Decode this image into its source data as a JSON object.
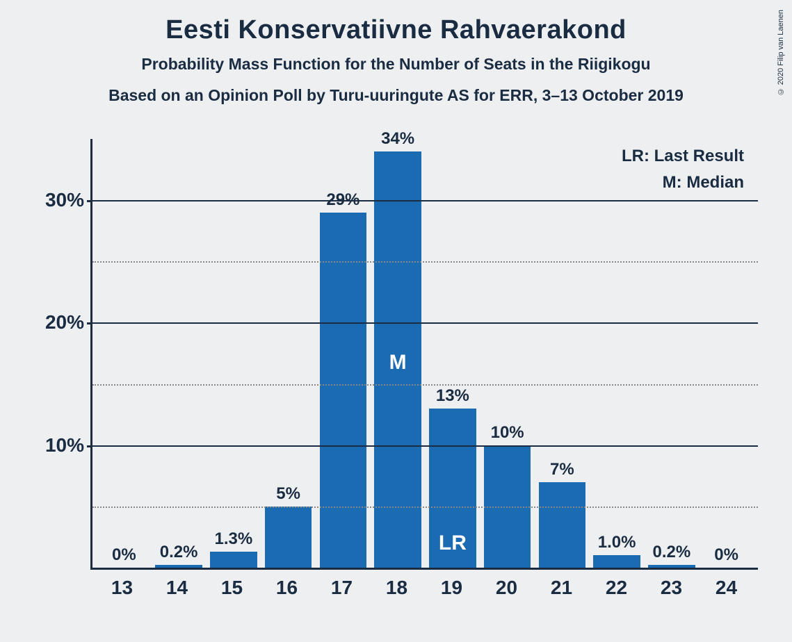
{
  "title": "Eesti Konservatiivne Rahvaerakond",
  "subtitle1": "Probability Mass Function for the Number of Seats in the Riigikogu",
  "subtitle2": "Based on an Opinion Poll by Turu-uuringute AS for ERR, 3–13 October 2019",
  "copyright": "© 2020 Filip van Laenen",
  "legend": {
    "lr": "LR: Last Result",
    "m": "M: Median"
  },
  "chart": {
    "type": "bar",
    "bar_color": "#1b6bb3",
    "background_color": "#eeeff0",
    "axis_color": "#1a2c42",
    "grid_dotted_color": "#888888",
    "title_fontsize": 38,
    "subtitle_fontsize": 23,
    "label_fontsize": 24,
    "tick_fontsize": 28,
    "ylim": [
      0,
      35
    ],
    "ytick_step_major": 10,
    "ytick_step_minor": 5,
    "yticks": [
      {
        "v": 5,
        "label": "",
        "style": "dotted"
      },
      {
        "v": 10,
        "label": "10%",
        "style": "solid"
      },
      {
        "v": 15,
        "label": "",
        "style": "dotted"
      },
      {
        "v": 20,
        "label": "20%",
        "style": "solid"
      },
      {
        "v": 25,
        "label": "",
        "style": "dotted"
      },
      {
        "v": 30,
        "label": "30%",
        "style": "solid"
      }
    ],
    "categories": [
      "13",
      "14",
      "15",
      "16",
      "17",
      "18",
      "19",
      "20",
      "21",
      "22",
      "23",
      "24"
    ],
    "values": [
      0,
      0.2,
      1.3,
      5,
      29,
      34,
      13,
      10,
      7,
      1.0,
      0.2,
      0
    ],
    "value_labels": [
      "0%",
      "0.2%",
      "1.3%",
      "5%",
      "29%",
      "34%",
      "13%",
      "10%",
      "7%",
      "1.0%",
      "0.2%",
      "0%"
    ],
    "median_index": 5,
    "median_label": "M",
    "lr_index": 6,
    "lr_label": "LR"
  }
}
